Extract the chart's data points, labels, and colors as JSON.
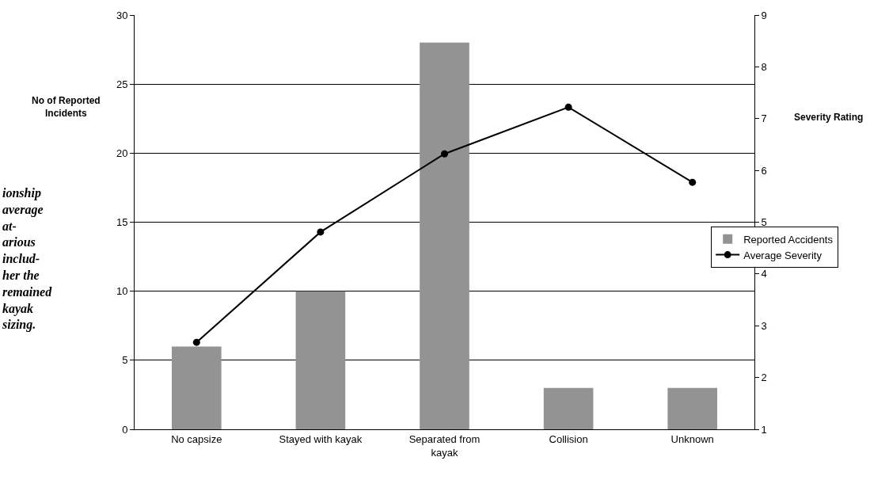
{
  "chart_data": {
    "type": "bar",
    "categories": [
      "No capsize",
      "Stayed with kayak",
      "Separated from kayak",
      "Collision",
      "Unknown"
    ],
    "series": [
      {
        "name": "Reported Accidents",
        "color": "#939393",
        "values": [
          6,
          10,
          28,
          3,
          3
        ]
      },
      {
        "name": "Average Severity",
        "type": "line",
        "axis": "y2",
        "color": "#000000",
        "marker": "circle",
        "values": [
          2.68,
          4.81,
          6.32,
          7.22,
          5.77
        ]
      }
    ],
    "ylabel": "No of Reported Incidents",
    "y2label": "Severity Rating",
    "ylim": [
      0,
      30
    ],
    "yticks": [
      0,
      5,
      10,
      15,
      20,
      25,
      30
    ],
    "y2lim": [
      1,
      9
    ],
    "y2ticks": [
      1,
      2,
      3,
      4,
      5,
      6,
      7,
      8,
      9
    ],
    "grid": "y",
    "legend": "right",
    "annotations": [
      "ionship\naverage\nat-\narious\ninclud-\nher the\nremained\nkayak\nsizing."
    ]
  }
}
